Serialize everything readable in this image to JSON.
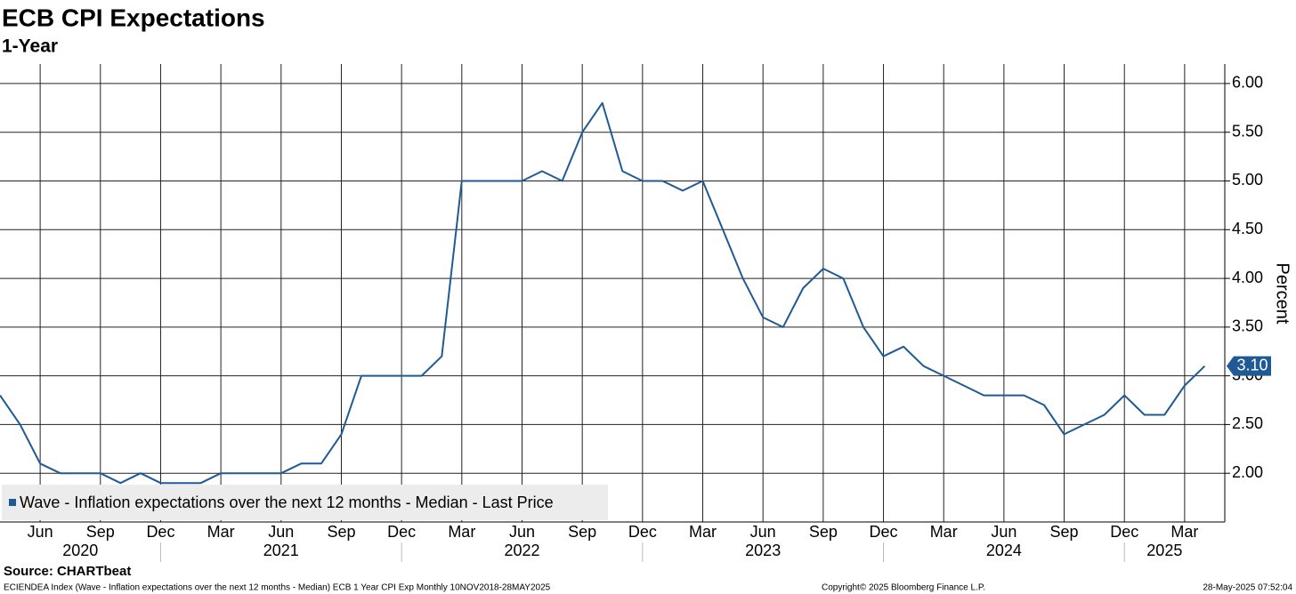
{
  "chart_data": {
    "type": "line",
    "title": "ECB CPI Expectations",
    "subtitle": "1-Year",
    "y_axis_label": "Percent",
    "x": [
      "2020-04",
      "2020-05",
      "2020-06",
      "2020-07",
      "2020-08",
      "2020-09",
      "2020-10",
      "2020-11",
      "2020-12",
      "2021-01",
      "2021-02",
      "2021-03",
      "2021-04",
      "2021-05",
      "2021-06",
      "2021-07",
      "2021-08",
      "2021-09",
      "2021-10",
      "2021-11",
      "2021-12",
      "2022-01",
      "2022-02",
      "2022-03",
      "2022-04",
      "2022-05",
      "2022-06",
      "2022-07",
      "2022-08",
      "2022-09",
      "2022-10",
      "2022-11",
      "2022-12",
      "2023-01",
      "2023-02",
      "2023-03",
      "2023-04",
      "2023-05",
      "2023-06",
      "2023-07",
      "2023-08",
      "2023-09",
      "2023-10",
      "2023-11",
      "2023-12",
      "2024-01",
      "2024-02",
      "2024-03",
      "2024-04",
      "2024-05",
      "2024-06",
      "2024-07",
      "2024-08",
      "2024-09",
      "2024-10",
      "2024-11",
      "2024-12",
      "2025-01",
      "2025-02",
      "2025-03",
      "2025-04"
    ],
    "series": [
      {
        "name": "Wave - Inflation expectations over the next 12 months - Median - Last Price",
        "color": "#1f5a96",
        "values": [
          2.8,
          2.5,
          2.1,
          2.0,
          2.0,
          2.0,
          1.9,
          2.0,
          1.9,
          1.9,
          1.9,
          2.0,
          2.0,
          2.0,
          2.0,
          2.1,
          2.1,
          2.4,
          3.0,
          3.0,
          3.0,
          3.0,
          3.2,
          5.0,
          5.0,
          5.0,
          5.0,
          5.1,
          5.0,
          5.5,
          5.8,
          5.1,
          5.0,
          5.0,
          4.9,
          5.0,
          4.5,
          4.0,
          3.6,
          3.5,
          3.9,
          4.1,
          4.0,
          3.5,
          3.2,
          3.3,
          3.1,
          3.0,
          2.9,
          2.8,
          2.8,
          2.8,
          2.7,
          2.4,
          2.5,
          2.6,
          2.8,
          2.6,
          2.6,
          2.9,
          3.1
        ]
      }
    ],
    "last_value_label": {
      "value": 3.1,
      "label": "3.10"
    },
    "xlim": [
      "2020-04",
      "2025-05"
    ],
    "xticks": [
      {
        "value": "2020-06",
        "label": "Jun"
      },
      {
        "value": "2020-09",
        "label": "Sep"
      },
      {
        "value": "2020-12",
        "label": "Dec"
      },
      {
        "value": "2021-03",
        "label": "Mar"
      },
      {
        "value": "2021-06",
        "label": "Jun"
      },
      {
        "value": "2021-09",
        "label": "Sep"
      },
      {
        "value": "2021-12",
        "label": "Dec"
      },
      {
        "value": "2022-03",
        "label": "Mar"
      },
      {
        "value": "2022-06",
        "label": "Jun"
      },
      {
        "value": "2022-09",
        "label": "Sep"
      },
      {
        "value": "2022-12",
        "label": "Dec"
      },
      {
        "value": "2023-03",
        "label": "Mar"
      },
      {
        "value": "2023-06",
        "label": "Jun"
      },
      {
        "value": "2023-09",
        "label": "Sep"
      },
      {
        "value": "2023-12",
        "label": "Dec"
      },
      {
        "value": "2024-03",
        "label": "Mar"
      },
      {
        "value": "2024-06",
        "label": "Jun"
      },
      {
        "value": "2024-09",
        "label": "Sep"
      },
      {
        "value": "2024-12",
        "label": "Dec"
      },
      {
        "value": "2025-03",
        "label": "Mar"
      }
    ],
    "year_labels": [
      {
        "value": "2020-08",
        "label": "2020"
      },
      {
        "value": "2021-06",
        "label": "2021"
      },
      {
        "value": "2022-06",
        "label": "2022"
      },
      {
        "value": "2023-06",
        "label": "2023"
      },
      {
        "value": "2024-06",
        "label": "2024"
      },
      {
        "value": "2025-02",
        "label": "2025"
      }
    ],
    "ylim": [
      1.5,
      6.2
    ],
    "yticks": [
      {
        "value": 2,
        "label": "2.00"
      },
      {
        "value": 2.5,
        "label": "2.50"
      },
      {
        "value": 3,
        "label": "3.00"
      },
      {
        "value": 3.5,
        "label": "3.50"
      },
      {
        "value": 4,
        "label": "4.00"
      },
      {
        "value": 4.5,
        "label": "4.50"
      },
      {
        "value": 5,
        "label": "5.00"
      },
      {
        "value": 5.5,
        "label": "5.50"
      },
      {
        "value": 6,
        "label": "6.00"
      }
    ],
    "grid": true,
    "legend": "lower left",
    "source": "Source: CHARTbeat",
    "footer_left": "ECIENDEA Index (Wave - Inflation expectations over the next 12 months - Median) ECB 1 Year CPI Exp  Monthly 10NOV2018-28MAY2025",
    "footer_center": "Copyright© 2025 Bloomberg Finance L.P.",
    "footer_right": "28-May-2025 07:52:04"
  }
}
